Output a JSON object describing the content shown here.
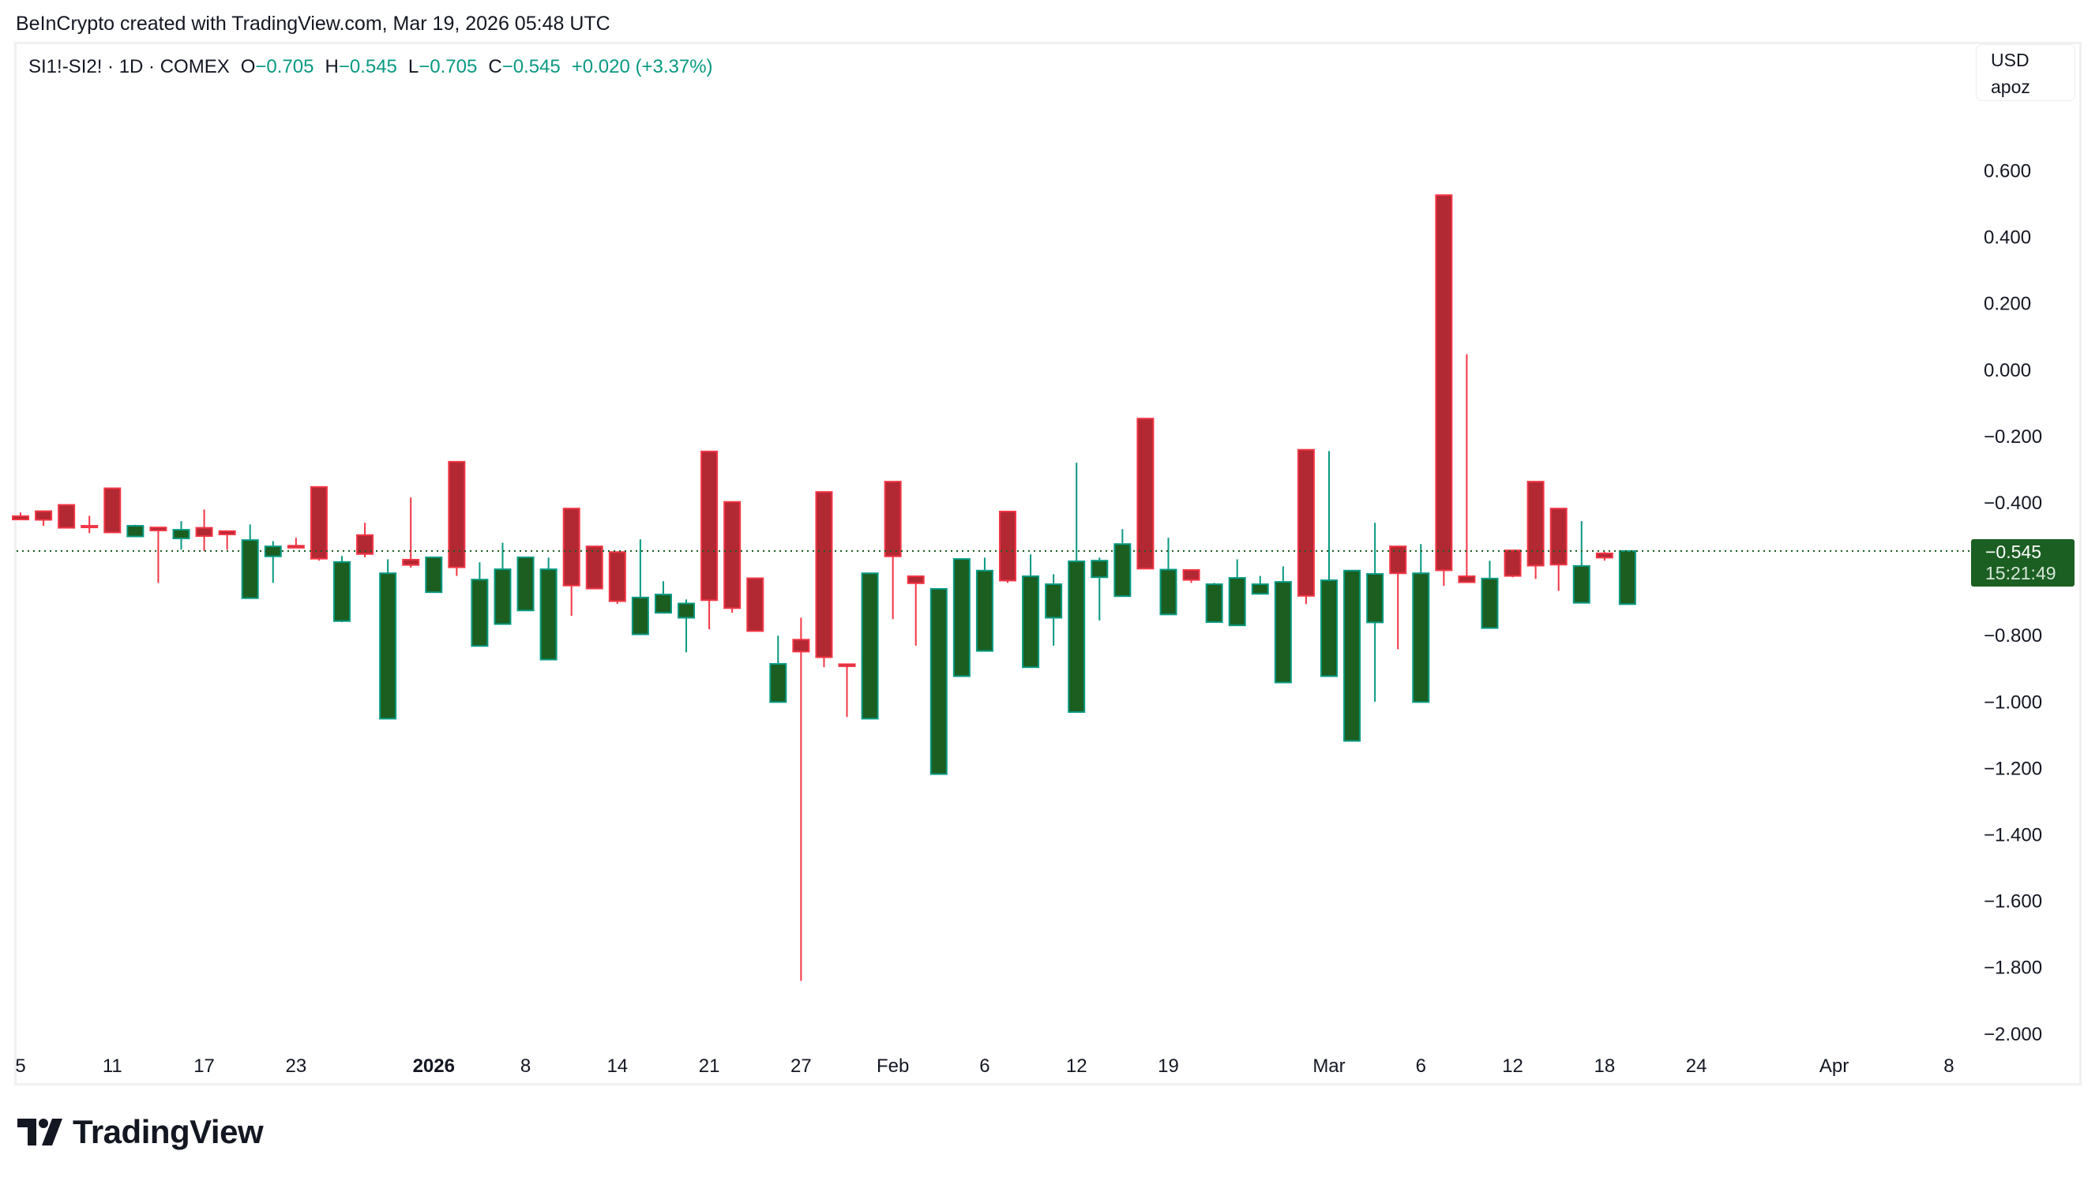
{
  "attribution": "BeInCrypto created with TradingView.com, Mar 19, 2026 05:48 UTC",
  "legend": {
    "symbol": "SI1!-SI2! · 1D · COMEX",
    "open_label": "O",
    "open_value": "−0.705",
    "high_label": "H",
    "high_value": "−0.545",
    "low_label": "L",
    "low_value": "−0.705",
    "close_label": "C",
    "close_value": "−0.545",
    "change": "+0.020 (+3.37%)"
  },
  "price_scale": {
    "currency": "USD",
    "unit": "apoz"
  },
  "last_price": {
    "value": "−0.545",
    "countdown": "15:21:49"
  },
  "logo": {
    "text": "TradingView"
  },
  "colors": {
    "up_border": "#089981",
    "up_fill": "#1b5e20",
    "down_border": "#f23645",
    "down_fill": "#b22833",
    "price_line": "#1b5e20"
  },
  "chart_data": {
    "type": "candlestick",
    "title": "",
    "ylim": [
      -2.0,
      0.6
    ],
    "grid": false,
    "yticks": [
      {
        "value": 0.6,
        "label": "0.600"
      },
      {
        "value": 0.4,
        "label": "0.400"
      },
      {
        "value": 0.2,
        "label": "0.200"
      },
      {
        "value": 0.0,
        "label": "0.000"
      },
      {
        "value": -0.2,
        "label": "−0.200"
      },
      {
        "value": -0.4,
        "label": "−0.400"
      },
      {
        "value": -0.8,
        "label": "−0.800"
      },
      {
        "value": -1.0,
        "label": "−1.000"
      },
      {
        "value": -1.2,
        "label": "−1.200"
      },
      {
        "value": -1.4,
        "label": "−1.400"
      },
      {
        "value": -1.6,
        "label": "−1.600"
      },
      {
        "value": -1.8,
        "label": "−1.800"
      },
      {
        "value": -2.0,
        "label": "−2.000"
      }
    ],
    "xticks": [
      {
        "date": "2025-12-05",
        "label": "5"
      },
      {
        "date": "2025-12-11",
        "label": "11"
      },
      {
        "date": "2025-12-17",
        "label": "17"
      },
      {
        "date": "2025-12-23",
        "label": "23"
      },
      {
        "date": "2026-01-02",
        "label": "2026",
        "bold": true
      },
      {
        "date": "2026-01-08",
        "label": "8"
      },
      {
        "date": "2026-01-14",
        "label": "14"
      },
      {
        "date": "2026-01-21",
        "label": "21"
      },
      {
        "date": "2026-01-27",
        "label": "27"
      },
      {
        "date": "2026-02-02",
        "label": "Feb"
      },
      {
        "date": "2026-02-06",
        "label": "6"
      },
      {
        "date": "2026-02-12",
        "label": "12"
      },
      {
        "date": "2026-02-19",
        "label": "19"
      },
      {
        "date": "2026-03-02",
        "label": "Mar"
      },
      {
        "date": "2026-03-06",
        "label": "6"
      },
      {
        "date": "2026-03-12",
        "label": "12"
      },
      {
        "date": "2026-03-18",
        "label": "18"
      },
      {
        "date": "2026-03-24",
        "label": "24"
      },
      {
        "date": "2026-04-01",
        "label": "Apr"
      },
      {
        "date": "2026-04-08",
        "label": "8"
      }
    ],
    "last_value": -0.545,
    "candles": [
      {
        "d": "2025-12-05",
        "o": -0.44,
        "h": -0.429,
        "l": -0.45,
        "c": -0.45
      },
      {
        "d": "2025-12-08",
        "o": -0.425,
        "h": -0.425,
        "l": -0.469,
        "c": -0.451
      },
      {
        "d": "2025-12-09",
        "o": -0.406,
        "h": -0.406,
        "l": -0.475,
        "c": -0.475
      },
      {
        "d": "2025-12-10",
        "o": -0.469,
        "h": -0.439,
        "l": -0.491,
        "c": -0.47
      },
      {
        "d": "2025-12-11",
        "o": -0.356,
        "h": -0.356,
        "l": -0.489,
        "c": -0.489
      },
      {
        "d": "2025-12-12",
        "o": -0.501,
        "h": -0.466,
        "l": -0.501,
        "c": -0.469
      },
      {
        "d": "2025-12-15",
        "o": -0.474,
        "h": -0.474,
        "l": -0.641,
        "c": -0.483
      },
      {
        "d": "2025-12-16",
        "o": -0.507,
        "h": -0.455,
        "l": -0.541,
        "c": -0.481
      },
      {
        "d": "2025-12-17",
        "o": -0.475,
        "h": -0.42,
        "l": -0.545,
        "c": -0.5
      },
      {
        "d": "2025-12-18",
        "o": -0.485,
        "h": -0.485,
        "l": -0.541,
        "c": -0.495
      },
      {
        "d": "2025-12-19",
        "o": -0.687,
        "h": -0.465,
        "l": -0.687,
        "c": -0.512
      },
      {
        "d": "2025-12-22",
        "o": -0.561,
        "h": -0.515,
        "l": -0.641,
        "c": -0.531
      },
      {
        "d": "2025-12-23",
        "o": -0.529,
        "h": -0.505,
        "l": -0.535,
        "c": -0.535
      },
      {
        "d": "2025-12-24",
        "o": -0.352,
        "h": -0.352,
        "l": -0.574,
        "c": -0.568
      },
      {
        "d": "2025-12-26",
        "o": -0.756,
        "h": -0.56,
        "l": -0.759,
        "c": -0.578
      },
      {
        "d": "2025-12-29",
        "o": -0.497,
        "h": -0.46,
        "l": -0.564,
        "c": -0.554
      },
      {
        "d": "2025-12-30",
        "o": -1.05,
        "h": -0.57,
        "l": -1.05,
        "c": -0.612
      },
      {
        "d": "2025-12-31",
        "o": -0.571,
        "h": -0.384,
        "l": -0.595,
        "c": -0.587
      },
      {
        "d": "2026-01-02",
        "o": -0.669,
        "h": -0.564,
        "l": -0.669,
        "c": -0.564
      },
      {
        "d": "2026-01-05",
        "o": -0.276,
        "h": -0.276,
        "l": -0.62,
        "c": -0.594
      },
      {
        "d": "2026-01-06",
        "o": -0.831,
        "h": -0.579,
        "l": -0.831,
        "c": -0.631
      },
      {
        "d": "2026-01-07",
        "o": -0.765,
        "h": -0.52,
        "l": -0.765,
        "c": -0.6
      },
      {
        "d": "2026-01-08",
        "o": -0.724,
        "h": -0.564,
        "l": -0.724,
        "c": -0.564
      },
      {
        "d": "2026-01-09",
        "o": -0.872,
        "h": -0.565,
        "l": -0.872,
        "c": -0.6
      },
      {
        "d": "2026-01-12",
        "o": -0.417,
        "h": -0.417,
        "l": -0.74,
        "c": -0.649
      },
      {
        "d": "2026-01-13",
        "o": -0.531,
        "h": -0.531,
        "l": -0.658,
        "c": -0.658
      },
      {
        "d": "2026-01-14",
        "o": -0.548,
        "h": -0.548,
        "l": -0.704,
        "c": -0.696
      },
      {
        "d": "2026-01-15",
        "o": -0.796,
        "h": -0.51,
        "l": -0.796,
        "c": -0.685
      },
      {
        "d": "2026-01-16",
        "o": -0.731,
        "h": -0.636,
        "l": -0.731,
        "c": -0.676
      },
      {
        "d": "2026-01-20",
        "o": -0.746,
        "h": -0.691,
        "l": -0.85,
        "c": -0.703
      },
      {
        "d": "2026-01-21",
        "o": -0.245,
        "h": -0.245,
        "l": -0.781,
        "c": -0.693
      },
      {
        "d": "2026-01-22",
        "o": -0.397,
        "h": -0.397,
        "l": -0.731,
        "c": -0.717
      },
      {
        "d": "2026-01-23",
        "o": -0.627,
        "h": -0.627,
        "l": -0.786,
        "c": -0.786
      },
      {
        "d": "2026-01-26",
        "o": -1.0,
        "h": -0.8,
        "l": -1.0,
        "c": -0.885
      },
      {
        "d": "2026-01-27",
        "o": -0.812,
        "h": -0.746,
        "l": -1.84,
        "c": -0.848
      },
      {
        "d": "2026-01-28",
        "o": -0.367,
        "h": -0.367,
        "l": -0.895,
        "c": -0.865
      },
      {
        "d": "2026-01-29",
        "o": -0.886,
        "h": -0.886,
        "l": -1.045,
        "c": -0.892
      },
      {
        "d": "2026-01-30",
        "o": -1.05,
        "h": -0.612,
        "l": -1.05,
        "c": -0.612
      },
      {
        "d": "2026-02-02",
        "o": -0.336,
        "h": -0.336,
        "l": -0.75,
        "c": -0.561
      },
      {
        "d": "2026-02-03",
        "o": -0.621,
        "h": -0.621,
        "l": -0.83,
        "c": -0.642
      },
      {
        "d": "2026-02-04",
        "o": -1.217,
        "h": -0.659,
        "l": -1.217,
        "c": -0.659
      },
      {
        "d": "2026-02-05",
        "o": -0.922,
        "h": -0.569,
        "l": -0.922,
        "c": -0.569
      },
      {
        "d": "2026-02-06",
        "o": -0.846,
        "h": -0.565,
        "l": -0.846,
        "c": -0.604
      },
      {
        "d": "2026-02-09",
        "o": -0.426,
        "h": -0.426,
        "l": -0.641,
        "c": -0.634
      },
      {
        "d": "2026-02-10",
        "o": -0.895,
        "h": -0.555,
        "l": -0.895,
        "c": -0.621
      },
      {
        "d": "2026-02-11",
        "o": -0.746,
        "h": -0.615,
        "l": -0.83,
        "c": -0.645
      },
      {
        "d": "2026-02-12",
        "o": -1.03,
        "h": -0.279,
        "l": -1.03,
        "c": -0.576
      },
      {
        "d": "2026-02-13",
        "o": -0.624,
        "h": -0.565,
        "l": -0.754,
        "c": -0.574
      },
      {
        "d": "2026-02-17",
        "o": -0.681,
        "h": -0.479,
        "l": -0.681,
        "c": -0.524
      },
      {
        "d": "2026-02-18",
        "o": -0.146,
        "h": -0.146,
        "l": -0.598,
        "c": -0.598
      },
      {
        "d": "2026-02-19",
        "o": -0.736,
        "h": -0.505,
        "l": -0.736,
        "c": -0.601
      },
      {
        "d": "2026-02-20",
        "o": -0.602,
        "h": -0.602,
        "l": -0.641,
        "c": -0.632
      },
      {
        "d": "2026-02-23",
        "o": -0.759,
        "h": -0.641,
        "l": -0.759,
        "c": -0.645
      },
      {
        "d": "2026-02-24",
        "o": -0.769,
        "h": -0.57,
        "l": -0.769,
        "c": -0.626
      },
      {
        "d": "2026-02-25",
        "o": -0.674,
        "h": -0.62,
        "l": -0.674,
        "c": -0.645
      },
      {
        "d": "2026-02-26",
        "o": -0.941,
        "h": -0.591,
        "l": -0.941,
        "c": -0.638
      },
      {
        "d": "2026-02-27",
        "o": -0.24,
        "h": -0.24,
        "l": -0.705,
        "c": -0.68
      },
      {
        "d": "2026-03-02",
        "o": -0.922,
        "h": -0.244,
        "l": -0.922,
        "c": -0.633
      },
      {
        "d": "2026-03-03",
        "o": -1.117,
        "h": -0.604,
        "l": -1.117,
        "c": -0.604
      },
      {
        "d": "2026-03-04",
        "o": -0.76,
        "h": -0.46,
        "l": -0.999,
        "c": -0.614
      },
      {
        "d": "2026-03-05",
        "o": -0.531,
        "h": -0.531,
        "l": -0.841,
        "c": -0.612
      },
      {
        "d": "2026-03-06",
        "o": -1.0,
        "h": -0.524,
        "l": -1.0,
        "c": -0.612
      },
      {
        "d": "2026-03-09",
        "o": 0.527,
        "h": 0.527,
        "l": -0.65,
        "c": -0.603
      },
      {
        "d": "2026-03-10",
        "o": -0.621,
        "h": 0.048,
        "l": -0.639,
        "c": -0.639
      },
      {
        "d": "2026-03-11",
        "o": -0.777,
        "h": -0.574,
        "l": -0.777,
        "c": -0.628
      },
      {
        "d": "2026-03-12",
        "o": -0.543,
        "h": -0.543,
        "l": -0.624,
        "c": -0.62
      },
      {
        "d": "2026-03-13",
        "o": -0.336,
        "h": -0.336,
        "l": -0.629,
        "c": -0.589
      },
      {
        "d": "2026-03-16",
        "o": -0.417,
        "h": -0.417,
        "l": -0.665,
        "c": -0.586
      },
      {
        "d": "2026-03-17",
        "o": -0.701,
        "h": -0.455,
        "l": -0.701,
        "c": -0.59
      },
      {
        "d": "2026-03-18",
        "o": -0.552,
        "h": -0.547,
        "l": -0.574,
        "c": -0.565
      },
      {
        "d": "2026-03-19",
        "o": -0.705,
        "h": -0.545,
        "l": -0.705,
        "c": -0.545
      }
    ]
  }
}
